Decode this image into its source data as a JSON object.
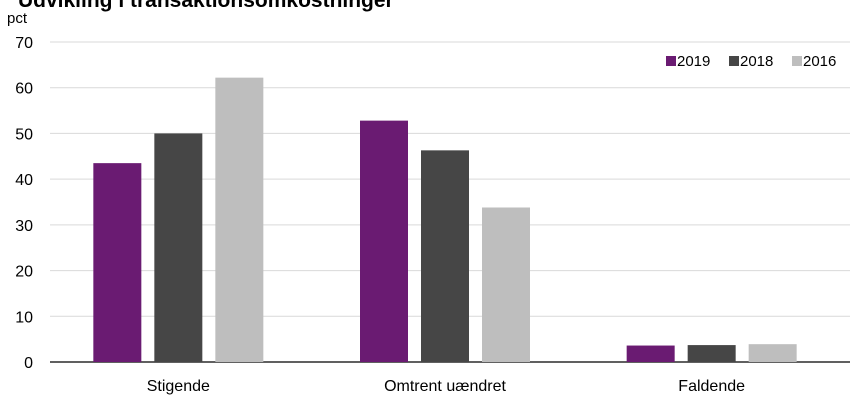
{
  "chart_data": {
    "type": "bar",
    "title": "Udvikling i transaktionsomkostninger",
    "ylabel": "pct",
    "xlabel": "",
    "ylim": [
      0,
      70
    ],
    "yticks": [
      0,
      10,
      20,
      30,
      40,
      50,
      60,
      70
    ],
    "grid": true,
    "legend_position": "top-right",
    "categories": [
      "Stigende",
      "Omtrent uændret",
      "Faldende"
    ],
    "series": [
      {
        "name": "2019",
        "color": "#6A1B72",
        "values": [
          43.5,
          52.8,
          3.6
        ]
      },
      {
        "name": "2018",
        "color": "#464646",
        "values": [
          50.0,
          46.3,
          3.7
        ]
      },
      {
        "name": "2016",
        "color": "#BEBEBE",
        "values": [
          62.2,
          33.8,
          3.9
        ]
      }
    ]
  }
}
